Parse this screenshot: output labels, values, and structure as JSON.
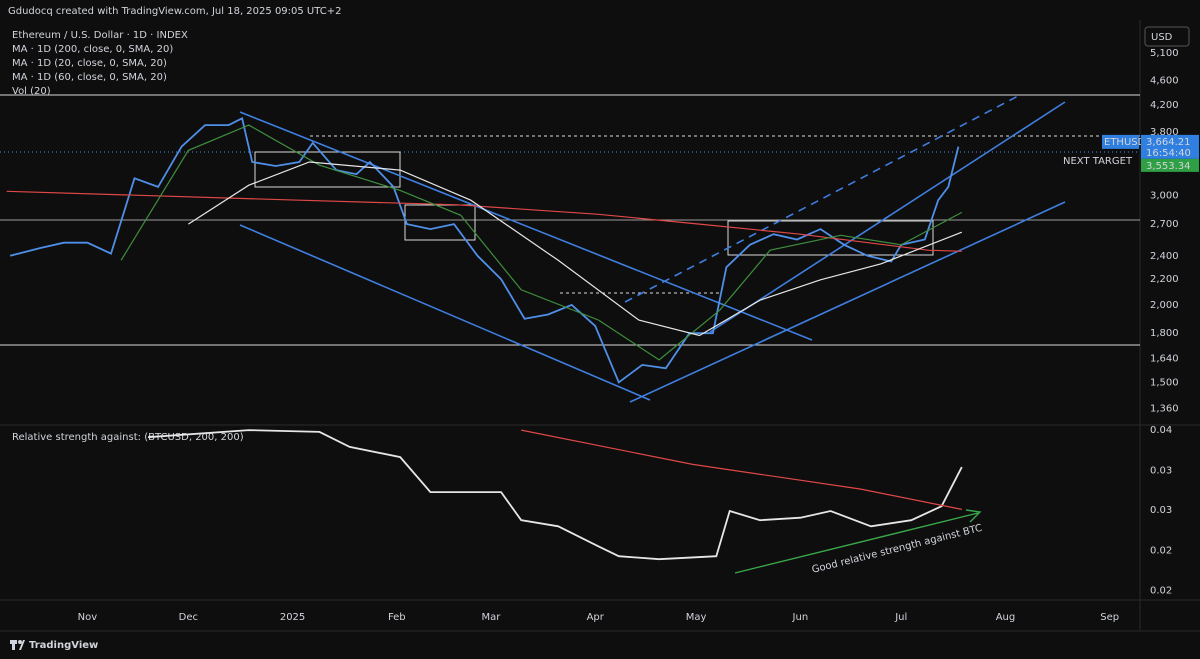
{
  "attribution": "Gdudocq created with TradingView.com, Jul 18, 2025 09:05 UTC+2",
  "brand": "TradingView",
  "currency": "USD",
  "chart_data": [
    {
      "type": "line",
      "title": "Ethereum / U.S. Dollar · 1D · INDEX",
      "indicators": [
        "Vol (20)"
      ],
      "log_scale": true,
      "xlim": [
        -26,
        313
      ],
      "ylim": [
        1280,
        5720
      ],
      "yticks": [
        {
          "value": 1360,
          "label": "1,360"
        },
        {
          "value": 1500,
          "label": "1,500"
        },
        {
          "value": 1640,
          "label": "1,640"
        },
        {
          "value": 1800,
          "label": "1,800"
        },
        {
          "value": 2000,
          "label": "2,000"
        },
        {
          "value": 2200,
          "label": "2,200"
        },
        {
          "value": 2400,
          "label": "2,400"
        },
        {
          "value": 2700,
          "label": "2,700"
        },
        {
          "value": 3000,
          "label": "3,000"
        },
        {
          "value": 3800,
          "label": "3,800"
        },
        {
          "value": 4200,
          "label": "4,200"
        },
        {
          "value": 4600,
          "label": "4,600"
        },
        {
          "value": 5100,
          "label": "5,100"
        }
      ],
      "series": [
        {
          "name": "ETHUSD",
          "color": "#4f8fe8",
          "x": [
            -23,
            -14,
            -7,
            0,
            7,
            14,
            21,
            28,
            35,
            42,
            46,
            49,
            56,
            63,
            67,
            74,
            80,
            84,
            91,
            95,
            102,
            109,
            116,
            123,
            130,
            137,
            144,
            151,
            158,
            165,
            172,
            179,
            186,
            190,
            197,
            204,
            211,
            218,
            225,
            232,
            239,
            242,
            249,
            253,
            256,
            259
          ],
          "values": [
            2400,
            2470,
            2520,
            2520,
            2420,
            3200,
            3100,
            3600,
            3900,
            3900,
            4000,
            3400,
            3350,
            3400,
            3650,
            3300,
            3250,
            3400,
            3100,
            2700,
            2650,
            2700,
            2400,
            2200,
            1900,
            1930,
            2000,
            1850,
            1500,
            1600,
            1580,
            1800,
            1800,
            2300,
            2500,
            2600,
            2550,
            2650,
            2500,
            2400,
            2350,
            2500,
            2550,
            2950,
            3100,
            3600
          ]
        },
        {
          "name": "MA · 1D (200, close, 0, SMA, 20)",
          "color": "#e04848",
          "x": [
            -24,
            63,
            110,
            152,
            182,
            212,
            250,
            260
          ],
          "values": [
            3050,
            2950,
            2900,
            2800,
            2700,
            2600,
            2450,
            2440
          ]
        },
        {
          "name": "MA · 1D (20, close, 0, SMA, 20)",
          "color": "#3f8f3f",
          "x": [
            10,
            30,
            48,
            69,
            93,
            111,
            129,
            152,
            170,
            188,
            203,
            224,
            242,
            260
          ],
          "values": [
            2360,
            3550,
            3900,
            3360,
            3060,
            2790,
            2115,
            1890,
            1630,
            1960,
            2450,
            2590,
            2500,
            2820
          ]
        },
        {
          "name": "MA · 1D (60, close, 0, SMA, 20)",
          "color": "#e6e6e6",
          "x": [
            30,
            48,
            66,
            93,
            114,
            140,
            164,
            182,
            200,
            218,
            236,
            260
          ],
          "values": [
            2700,
            3120,
            3400,
            3300,
            2950,
            2360,
            1890,
            1785,
            2035,
            2195,
            2330,
            2620
          ]
        }
      ],
      "price_tags": [
        {
          "name": "ETHUSD",
          "value": 3664.21,
          "label": "3,664.21",
          "countdown": "16:54:40",
          "color": "#2f7fe0"
        },
        {
          "value": 3553.34,
          "label": "3,553.34",
          "color": "#2ea043"
        }
      ],
      "annotations": [
        "NEXT TARGET"
      ]
    },
    {
      "type": "line",
      "title": "Relative strength against: (BTCUSD, 200, 200)",
      "log_scale": true,
      "xlim": [
        -26,
        313
      ],
      "ylim": [
        0.0192,
        0.0409
      ],
      "xticks": [
        {
          "value": 0,
          "label": "Nov"
        },
        {
          "value": 30,
          "label": "Dec"
        },
        {
          "value": 61,
          "label": "2025"
        },
        {
          "value": 92,
          "label": "Feb"
        },
        {
          "value": 120,
          "label": "Mar"
        },
        {
          "value": 151,
          "label": "Apr"
        },
        {
          "value": 181,
          "label": "May"
        },
        {
          "value": 212,
          "label": "Jun"
        },
        {
          "value": 242,
          "label": "Jul"
        },
        {
          "value": 273,
          "label": "Aug"
        },
        {
          "value": 304,
          "label": "Sep"
        }
      ],
      "yticks": [
        {
          "value": 0.04,
          "label": "0.04"
        },
        {
          "value": 0.0336,
          "label": "0.03"
        },
        {
          "value": 0.0283,
          "label": "0.03"
        },
        {
          "value": 0.0238,
          "label": "0.02"
        },
        {
          "value": 0.02,
          "label": "0.02"
        }
      ],
      "series": [
        {
          "color": "#e6e6e6",
          "x": [
            18,
            48,
            69,
            78,
            93,
            102,
            123,
            129,
            140,
            152,
            158,
            170,
            187,
            191,
            200,
            212,
            221,
            233,
            245,
            254,
            260
          ],
          "values": [
            0.0388,
            0.04,
            0.0397,
            0.0372,
            0.0356,
            0.0306,
            0.0306,
            0.0271,
            0.0264,
            0.0242,
            0.0232,
            0.0229,
            0.0232,
            0.0282,
            0.0271,
            0.0274,
            0.0282,
            0.0264,
            0.0271,
            0.0288,
            0.0341
          ]
        },
        {
          "color": "#e04848",
          "x": [
            129,
            180,
            230,
            260
          ],
          "values": [
            0.04,
            0.0345,
            0.031,
            0.0284
          ]
        }
      ],
      "annotations": [
        "Good relative strength against BTC"
      ]
    }
  ]
}
